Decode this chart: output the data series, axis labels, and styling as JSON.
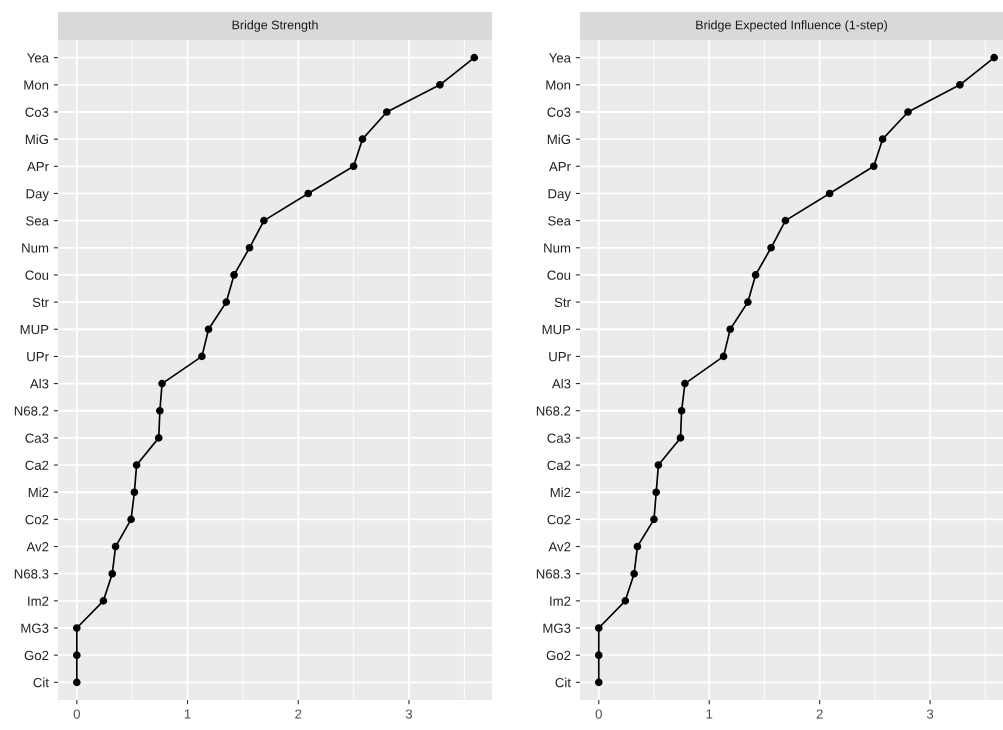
{
  "chart_data": [
    {
      "type": "line",
      "title": "Bridge Strength",
      "orientation": "horizontal",
      "marker": "circle",
      "grid": true,
      "categories": [
        "Yea",
        "Mon",
        "Co3",
        "MiG",
        "APr",
        "Day",
        "Sea",
        "Num",
        "Cou",
        "Str",
        "MUP",
        "UPr",
        "Al3",
        "N68.2",
        "Ca3",
        "Ca2",
        "Mi2",
        "Co2",
        "Av2",
        "N68.3",
        "Im2",
        "MG3",
        "Go2",
        "Cit"
      ],
      "series": [
        {
          "color": "#000000",
          "values": [
            3.59,
            3.28,
            2.8,
            2.58,
            2.5,
            2.09,
            1.69,
            1.56,
            1.42,
            1.35,
            1.19,
            1.13,
            0.77,
            0.75,
            0.74,
            0.54,
            0.52,
            0.49,
            0.35,
            0.32,
            0.24,
            0,
            0,
            0
          ]
        }
      ],
      "xlim": [
        -0.17,
        3.75
      ],
      "xticks": [
        0,
        1,
        2,
        3
      ]
    },
    {
      "type": "line",
      "title": "Bridge Expected Influence (1-step)",
      "orientation": "horizontal",
      "marker": "circle",
      "grid": true,
      "categories": [
        "Yea",
        "Mon",
        "Co3",
        "MiG",
        "APr",
        "Day",
        "Sea",
        "Num",
        "Cou",
        "Str",
        "MUP",
        "UPr",
        "Al3",
        "N68.2",
        "Ca3",
        "Ca2",
        "Mi2",
        "Co2",
        "Av2",
        "N68.3",
        "Im2",
        "MG3",
        "Go2",
        "Cit"
      ],
      "series": [
        {
          "color": "#000000",
          "values": [
            3.58,
            3.27,
            2.8,
            2.57,
            2.49,
            2.09,
            1.69,
            1.56,
            1.42,
            1.35,
            1.19,
            1.13,
            0.78,
            0.75,
            0.74,
            0.54,
            0.52,
            0.5,
            0.35,
            0.32,
            0.24,
            0,
            0,
            0
          ]
        }
      ],
      "xlim": [
        -0.17,
        3.66
      ],
      "xticks": [
        0,
        1,
        2,
        3
      ]
    }
  ]
}
